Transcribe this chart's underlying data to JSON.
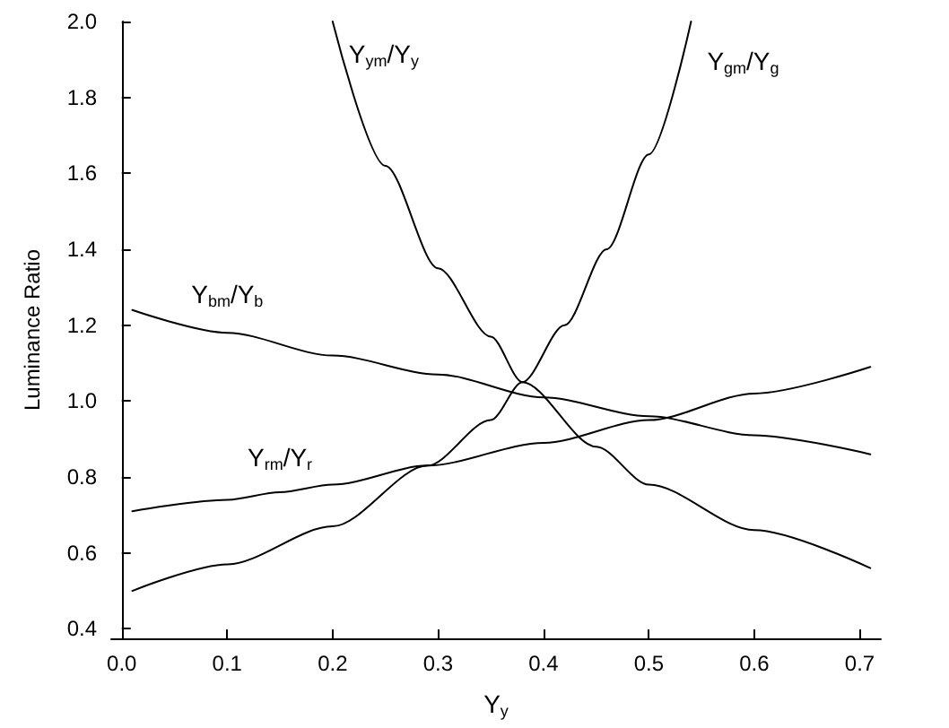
{
  "chart_data": {
    "type": "line",
    "xlabel": "Y$_{y}$",
    "ylabel": "Luminance Ratio",
    "xlim": [
      -0.01,
      0.72
    ],
    "xticks": [
      {
        "value": 0,
        "label": "0.0"
      },
      0.1,
      0.2,
      0.3,
      0.4,
      0.5,
      0.6,
      0.7
    ],
    "ylim": [
      0.375,
      2.0
    ],
    "yticks": [
      0.4,
      0.6,
      0.8,
      {
        "value": 1,
        "label": "1.0"
      },
      1.2,
      1.4,
      1.6,
      1.8,
      {
        "value": 2,
        "label": "2.0"
      }
    ],
    "grid": false,
    "legend": false,
    "marker": "none",
    "line_style": "solid",
    "series": [
      {
        "name": "Y$_{ym}$/Y$_{y}$",
        "color": "#000000",
        "x": [
          0.2,
          0.25,
          0.3,
          0.35,
          0.38,
          0.45,
          0.5,
          0.6,
          0.71
        ],
        "values": [
          2.0,
          1.62,
          1.35,
          1.17,
          1.05,
          0.88,
          0.78,
          0.66,
          0.56
        ]
      },
      {
        "name": "Y$_{gm}$/Y$_{g}$",
        "color": "#000000",
        "x": [
          0.01,
          0.1,
          0.2,
          0.29,
          0.35,
          0.38,
          0.42,
          0.46,
          0.5,
          0.54
        ],
        "values": [
          0.5,
          0.57,
          0.67,
          0.83,
          0.95,
          1.05,
          1.2,
          1.4,
          1.65,
          2.0
        ]
      },
      {
        "name": "Y$_{bm}$/Y$_{b}$",
        "color": "#000000",
        "x": [
          0.01,
          0.1,
          0.2,
          0.3,
          0.4,
          0.5,
          0.6,
          0.71
        ],
        "values": [
          1.24,
          1.18,
          1.12,
          1.07,
          1.01,
          0.96,
          0.91,
          0.86
        ]
      },
      {
        "name": "Y$_{rm}$/Y$_{r}$",
        "color": "#000000",
        "x": [
          0.01,
          0.1,
          0.15,
          0.2,
          0.29,
          0.4,
          0.5,
          0.6,
          0.71
        ],
        "values": [
          0.71,
          0.74,
          0.76,
          0.78,
          0.83,
          0.89,
          0.95,
          1.02,
          1.09
        ]
      }
    ]
  }
}
